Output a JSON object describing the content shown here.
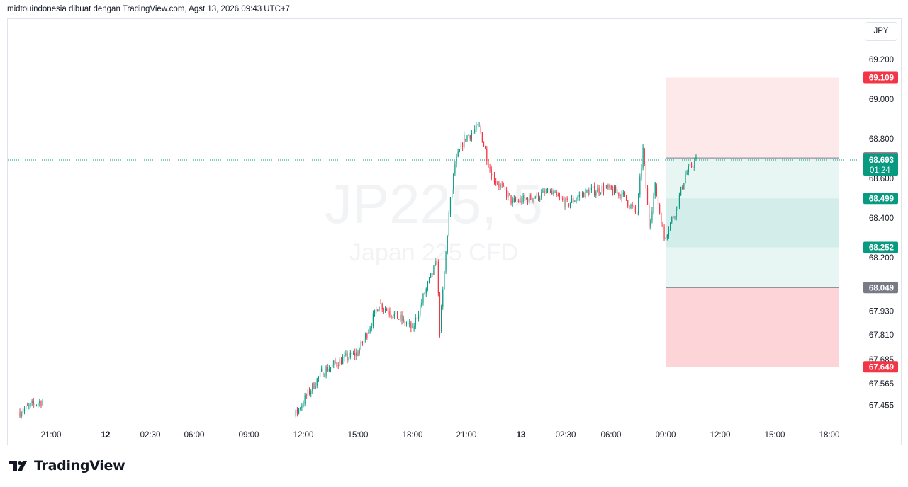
{
  "header": {
    "caption": "midtouindonesia dibuat dengan TradingView.com, Agst 13, 2026 09:43 UTC+7"
  },
  "currency": "JPY",
  "watermark": {
    "symbol": "JP225, 5",
    "name": "Japan 225 CFD"
  },
  "footer": {
    "brand": "TradingView",
    "logo_icon": "tradingview-logo-icon"
  },
  "colors": {
    "up": "#089981",
    "down": "#f23645",
    "axis_text": "#131722",
    "grid_border": "#e0e3eb",
    "stop_zone": "#f7525f",
    "target_zone": "#22ab94",
    "neutral_label": "#787b86"
  },
  "chart_data": {
    "type": "candlestick",
    "title": "JP225, 5",
    "subtitle": "Japan 225 CFD",
    "ylim": [
      67.38,
      69.35
    ],
    "y_ticks": [
      "69.200",
      "69.000",
      "68.800",
      "68.600",
      "68.400",
      "68.200",
      "67.930",
      "67.810",
      "67.685",
      "67.565",
      "67.455"
    ],
    "y_tick_values": [
      69.2,
      69.0,
      68.8,
      68.6,
      68.4,
      68.2,
      67.93,
      67.81,
      67.685,
      67.565,
      67.455
    ],
    "x_ticks": [
      "21:00",
      "12",
      "02:30",
      "06:00",
      "09:00",
      "12:00",
      "15:00",
      "18:00",
      "21:00",
      "13",
      "02:30",
      "06:00",
      "09:00",
      "12:00",
      "15:00",
      "18:00"
    ],
    "x_tick_bold": [
      false,
      true,
      false,
      false,
      false,
      false,
      false,
      false,
      false,
      true,
      false,
      false,
      false,
      false,
      false,
      false
    ],
    "price_labels": [
      {
        "value": "69.109",
        "kind": "stop"
      },
      {
        "value": "68.703",
        "kind": "neutral"
      },
      {
        "value": "68.693",
        "kind": "last",
        "countdown": "01:24"
      },
      {
        "value": "68.499",
        "kind": "target"
      },
      {
        "value": "68.252",
        "kind": "target"
      },
      {
        "value": "68.049",
        "kind": "neutral"
      },
      {
        "value": "67.649",
        "kind": "stop"
      }
    ],
    "last_price": 68.693,
    "position_tools": [
      {
        "entry": 68.703,
        "stop": 69.109,
        "target_inner": 68.499,
        "target_outer": 68.252,
        "direction": "short"
      },
      {
        "entry": 68.049,
        "stop": 67.649,
        "direction": "long"
      }
    ],
    "price_path": [
      [
        "2026-08-11 20:20",
        67.42
      ],
      [
        "2026-08-11 21:40",
        67.48
      ],
      [
        "2026-08-12 11:30",
        67.4
      ],
      [
        "2026-08-12 12:10",
        67.5
      ],
      [
        "2026-08-12 13:00",
        67.62
      ],
      [
        "2026-08-12 14:00",
        67.68
      ],
      [
        "2026-08-12 15:00",
        67.72
      ],
      [
        "2026-08-12 15:30",
        67.82
      ],
      [
        "2026-08-12 16:10",
        67.97
      ],
      [
        "2026-08-12 16:40",
        67.93
      ],
      [
        "2026-08-12 17:30",
        67.88
      ],
      [
        "2026-08-12 18:00",
        67.84
      ],
      [
        "2026-08-12 18:40",
        68.02
      ],
      [
        "2026-08-12 19:20",
        68.18
      ],
      [
        "2026-08-12 19:30",
        67.83
      ],
      [
        "2026-08-12 20:00",
        68.42
      ],
      [
        "2026-08-12 20:20",
        68.67
      ],
      [
        "2026-08-12 20:50",
        68.8
      ],
      [
        "2026-08-12 21:40",
        68.86
      ],
      [
        "2026-08-12 22:20",
        68.62
      ],
      [
        "2026-08-12 23:30",
        68.48
      ],
      [
        "2026-08-13 00:30",
        68.5
      ],
      [
        "2026-08-13 01:30",
        68.53
      ],
      [
        "2026-08-13 02:30",
        68.47
      ],
      [
        "2026-08-13 03:30",
        68.53
      ],
      [
        "2026-08-13 04:30",
        68.55
      ],
      [
        "2026-08-13 05:30",
        68.52
      ],
      [
        "2026-08-13 06:20",
        68.42
      ],
      [
        "2026-08-13 06:40",
        68.75
      ],
      [
        "2026-08-13 07:00",
        68.36
      ],
      [
        "2026-08-13 07:20",
        68.56
      ],
      [
        "2026-08-13 07:50",
        68.3
      ],
      [
        "2026-08-13 08:30",
        68.45
      ],
      [
        "2026-08-13 09:00",
        68.62
      ],
      [
        "2026-08-13 09:35",
        68.693
      ]
    ]
  }
}
